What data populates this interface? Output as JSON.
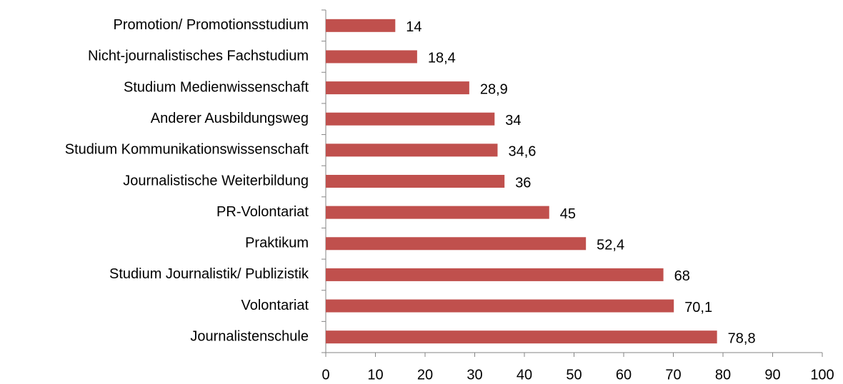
{
  "chart_data": {
    "type": "bar",
    "orientation": "horizontal",
    "categories": [
      "Promotion/ Promotionsstudium",
      "Nicht-journalistisches Fachstudium",
      "Studium Medienwissenschaft",
      "Anderer Ausbildungsweg",
      "Studium Kommunikationswissenschaft",
      "Journalistische Weiterbildung",
      "PR-Volontariat",
      "Praktikum",
      "Studium Journalistik/ Publizistik",
      "Volontariat",
      "Journalistenschule"
    ],
    "values": [
      14,
      18.4,
      28.9,
      34,
      34.6,
      36,
      45,
      52.4,
      68,
      70.1,
      78.8
    ],
    "value_labels": [
      "14",
      "18,4",
      "28,9",
      "34",
      "34,6",
      "36",
      "45",
      "52,4",
      "68",
      "70,1",
      "78,8"
    ],
    "color": "#c0504d",
    "xlim": [
      0,
      100
    ],
    "xticks": [
      0,
      10,
      20,
      30,
      40,
      50,
      60,
      70,
      80,
      90,
      100
    ]
  }
}
